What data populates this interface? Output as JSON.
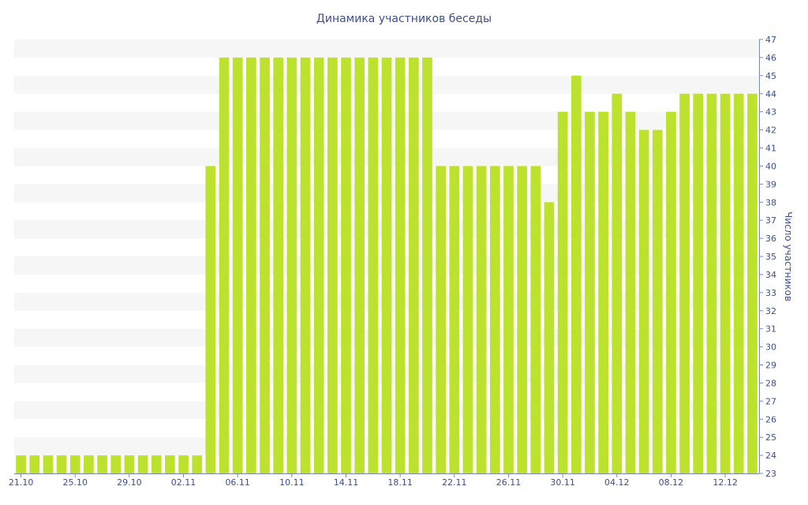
{
  "colors": {
    "bar": "#bde22d",
    "text": "#3d4f8c",
    "band": "#f6f6f6",
    "axis": "#7a88b0"
  },
  "chart_data": {
    "type": "bar",
    "title": "Динамика участников беседы",
    "xlabel": "",
    "ylabel": "Число участников",
    "ylim": [
      23,
      47
    ],
    "y_axis_side": "right",
    "grid": "alternating-bands",
    "categories": [
      "21.10",
      "22.10",
      "23.10",
      "24.10",
      "25.10",
      "26.10",
      "27.10",
      "28.10",
      "29.10",
      "30.10",
      "31.10",
      "01.11",
      "02.11",
      "03.11",
      "04.11",
      "05.11",
      "06.11",
      "07.11",
      "08.11",
      "09.11",
      "10.11",
      "11.11",
      "12.11",
      "13.11",
      "14.11",
      "15.11",
      "16.11",
      "17.11",
      "18.11",
      "19.11",
      "20.11",
      "21.11",
      "22.11",
      "23.11",
      "24.11",
      "25.11",
      "26.11",
      "27.11",
      "28.11",
      "29.11",
      "30.11",
      "01.12",
      "02.12",
      "03.12",
      "04.12",
      "05.12",
      "06.12",
      "07.12",
      "08.12",
      "09.12",
      "10.12",
      "11.12",
      "12.12",
      "13.12",
      "14.12"
    ],
    "x_tick_labels": [
      "21.10",
      "25.10",
      "29.10",
      "02.11",
      "06.11",
      "10.11",
      "14.11",
      "18.11",
      "22.11",
      "26.11",
      "30.11",
      "04.12",
      "08.12",
      "12.12"
    ],
    "y_tick_labels": [
      "23",
      "24",
      "25",
      "26",
      "27",
      "28",
      "29",
      "30",
      "31",
      "32",
      "33",
      "34",
      "35",
      "36",
      "37",
      "38",
      "39",
      "40",
      "41",
      "42",
      "43",
      "44",
      "45",
      "46",
      "47"
    ],
    "series": [
      {
        "values": [
          24,
          24,
          24,
          24,
          24,
          24,
          24,
          24,
          24,
          24,
          24,
          24,
          24,
          24,
          40,
          46,
          46,
          46,
          46,
          46,
          46,
          46,
          46,
          46,
          46,
          46,
          46,
          46,
          46,
          46,
          46,
          40,
          40,
          40,
          40,
          40,
          40,
          40,
          40,
          38,
          43,
          45,
          43,
          43,
          44,
          43,
          42,
          42,
          43,
          44,
          44,
          44,
          44,
          44,
          44
        ]
      }
    ]
  }
}
